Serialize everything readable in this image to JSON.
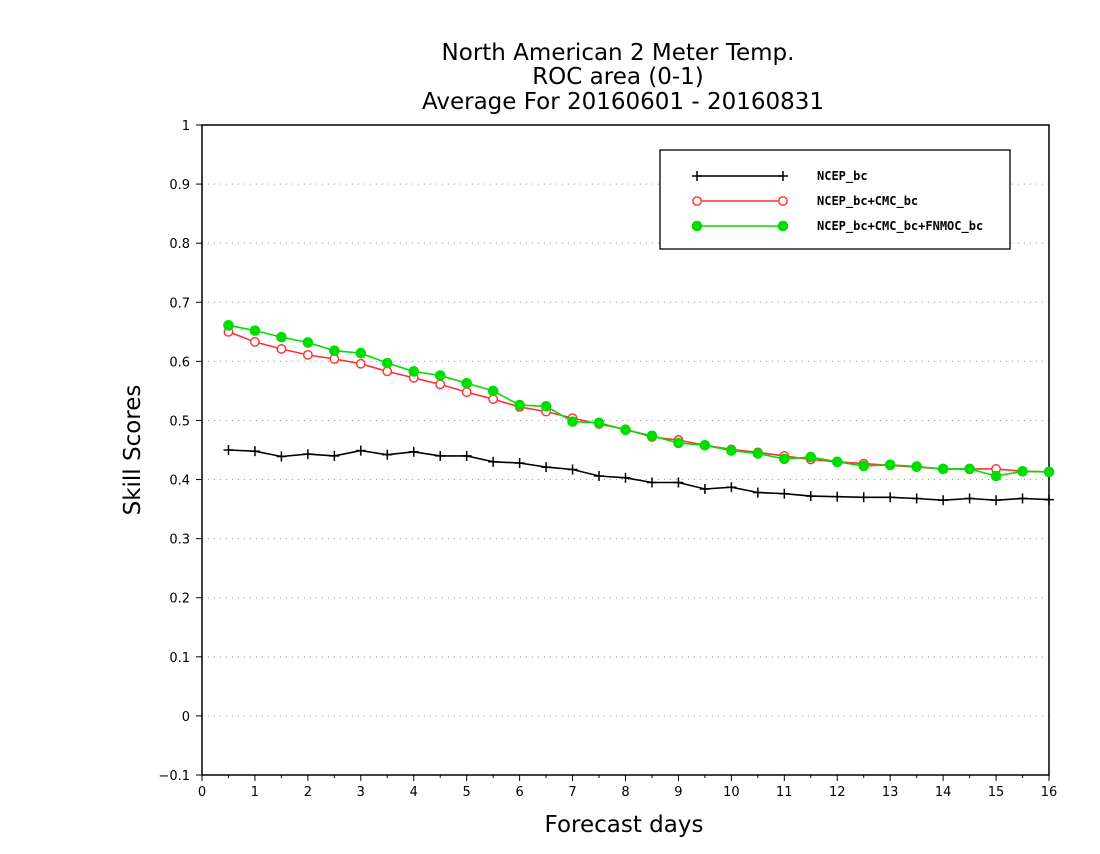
{
  "chart_data": {
    "type": "line",
    "title": [
      "North American 2 Meter Temp.",
      "ROC area (0-1)",
      "Average For 20160601 - 20160831"
    ],
    "xlabel": "Forecast days",
    "ylabel": "Skill Scores",
    "xlim": [
      0,
      16
    ],
    "ylim": [
      -0.1,
      1
    ],
    "xticks": [
      "0",
      "1",
      "2",
      "3",
      "4",
      "5",
      "6",
      "7",
      "8",
      "9",
      "10",
      "11",
      "12",
      "13",
      "14",
      "15",
      "16"
    ],
    "yticks": [
      "−0.1",
      "0",
      "0.1",
      "0.2",
      "0.3",
      "0.4",
      "0.5",
      "0.6",
      "0.7",
      "0.8",
      "0.9",
      "1"
    ],
    "grid": "horizontal dotted",
    "legend_position": "top-right",
    "x": [
      0.5,
      1,
      1.5,
      2,
      2.5,
      3,
      3.5,
      4,
      4.5,
      5,
      5.5,
      6,
      6.5,
      7,
      7.5,
      8,
      8.5,
      9,
      9.5,
      10,
      10.5,
      11,
      11.5,
      12,
      12.5,
      13,
      13.5,
      14,
      14.5,
      15,
      15.5,
      16
    ],
    "series": [
      {
        "name": "NCEP_bc",
        "color": "#000000",
        "marker": "plus",
        "values": [
          0.45,
          0.448,
          0.439,
          0.443,
          0.44,
          0.449,
          0.442,
          0.447,
          0.44,
          0.44,
          0.43,
          0.428,
          0.421,
          0.417,
          0.406,
          0.403,
          0.395,
          0.395,
          0.384,
          0.387,
          0.378,
          0.376,
          0.372,
          0.371,
          0.37,
          0.37,
          0.368,
          0.365,
          0.368,
          0.365,
          0.368,
          0.366
        ]
      },
      {
        "name": "NCEP_bc+CMC_bc",
        "color": "#ff3030",
        "marker": "open-circle",
        "values": [
          0.65,
          0.633,
          0.621,
          0.611,
          0.604,
          0.596,
          0.583,
          0.572,
          0.561,
          0.548,
          0.536,
          0.523,
          0.515,
          0.504,
          0.494,
          0.485,
          0.472,
          0.467,
          0.458,
          0.451,
          0.446,
          0.44,
          0.434,
          0.43,
          0.427,
          0.424,
          0.421,
          0.418,
          0.418,
          0.418,
          0.414,
          0.413
        ]
      },
      {
        "name": "NCEP_bc+CMC_bc+FNMOC_bc",
        "color": "#00dd00",
        "marker": "filled-circle",
        "values": [
          0.661,
          0.652,
          0.641,
          0.632,
          0.618,
          0.614,
          0.597,
          0.583,
          0.576,
          0.563,
          0.55,
          0.526,
          0.524,
          0.498,
          0.496,
          0.484,
          0.474,
          0.462,
          0.458,
          0.449,
          0.444,
          0.435,
          0.438,
          0.43,
          0.423,
          0.425,
          0.422,
          0.418,
          0.418,
          0.406,
          0.414,
          0.413
        ]
      }
    ]
  }
}
